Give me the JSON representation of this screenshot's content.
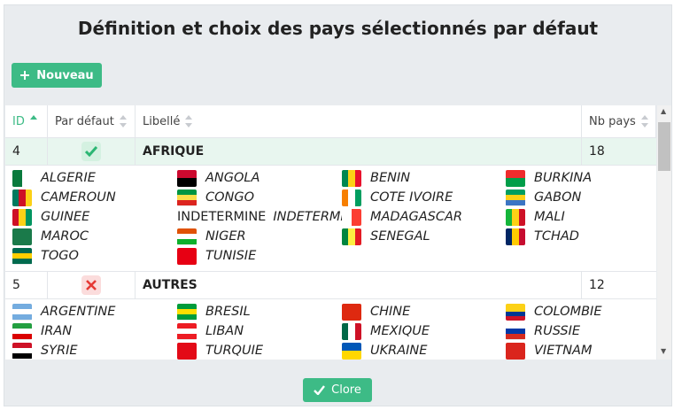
{
  "title": "Définition et choix des pays sélectionnés par défaut",
  "buttons": {
    "new": "Nouveau",
    "close": "Clore"
  },
  "table": {
    "headers": [
      "ID",
      "Par défaut",
      "Libellé",
      "Nb pays"
    ],
    "sorted_column": 0,
    "rows": [
      {
        "id": 4,
        "default": true,
        "label": "AFRIQUE",
        "count": 18,
        "selected": true,
        "countries": [
          {
            "name": "ALGERIE",
            "flag": [
              "#0a7a3d",
              "#ffffff"
            ],
            "stripes": "v"
          },
          {
            "name": "ANGOLA",
            "flag": [
              "#cc092f",
              "#000000"
            ],
            "stripes": "h"
          },
          {
            "name": "BENIN",
            "flag": [
              "#008751",
              "#fcd116",
              "#e8112d"
            ],
            "stripes": "v"
          },
          {
            "name": "BURKINA",
            "flag": [
              "#ef2b2d",
              "#009e49"
            ],
            "stripes": "h"
          },
          {
            "name": "CAMEROUN",
            "flag": [
              "#007a5e",
              "#ce1126",
              "#fcd116"
            ],
            "stripes": "v"
          },
          {
            "name": "CONGO",
            "flag": [
              "#009543",
              "#fbde4a",
              "#dc241f"
            ],
            "stripes": "h"
          },
          {
            "name": "COTE IVOIRE",
            "flag": [
              "#f77f00",
              "#ffffff",
              "#009e60"
            ],
            "stripes": "v"
          },
          {
            "name": "GABON",
            "flag": [
              "#009e60",
              "#fcd116",
              "#3a75c4"
            ],
            "stripes": "h"
          },
          {
            "name": "GUINEE",
            "flag": [
              "#ce1126",
              "#fcd116",
              "#009460"
            ],
            "stripes": "v"
          },
          {
            "name": "INDETERMINE",
            "flag_alt": "INDETERMINE"
          },
          {
            "name": "MADAGASCAR",
            "flag": [
              "#ffffff",
              "#fc3d32"
            ],
            "stripes": "v"
          },
          {
            "name": "MALI",
            "flag": [
              "#14b53a",
              "#fcd116",
              "#ce1126"
            ],
            "stripes": "v"
          },
          {
            "name": "MAROC",
            "flag": [
              "#1a7a4a",
              "#1a7a4a"
            ],
            "stripes": "v"
          },
          {
            "name": "NIGER",
            "flag": [
              "#e05206",
              "#ffffff",
              "#0db02b"
            ],
            "stripes": "h"
          },
          {
            "name": "SENEGAL",
            "flag": [
              "#00853f",
              "#fdef42",
              "#e31b23"
            ],
            "stripes": "v"
          },
          {
            "name": "TCHAD",
            "flag": [
              "#002664",
              "#fecb00",
              "#c60c30"
            ],
            "stripes": "v"
          },
          {
            "name": "TOGO",
            "flag": [
              "#006a4e",
              "#ffce00",
              "#006a4e"
            ],
            "stripes": "h"
          },
          {
            "name": "TUNISIE",
            "flag": [
              "#e70013",
              "#e70013"
            ],
            "stripes": "v"
          }
        ]
      },
      {
        "id": 5,
        "default": false,
        "label": "AUTRES",
        "count": 12,
        "selected": false,
        "countries": [
          {
            "name": "ARGENTINE",
            "flag": [
              "#74acdf",
              "#ffffff",
              "#74acdf"
            ],
            "stripes": "h"
          },
          {
            "name": "BRESIL",
            "flag": [
              "#009c3b",
              "#ffdf00",
              "#009c3b"
            ],
            "stripes": "h"
          },
          {
            "name": "CHINE",
            "flag": [
              "#de2910",
              "#de2910"
            ],
            "stripes": "v"
          },
          {
            "name": "COLOMBIE",
            "flag": [
              "#fcd116",
              "#fcd116",
              "#003893",
              "#ce1126"
            ],
            "stripes": "h"
          },
          {
            "name": "IRAN",
            "flag": [
              "#239f40",
              "#ffffff",
              "#da0000"
            ],
            "stripes": "h"
          },
          {
            "name": "LIBAN",
            "flag": [
              "#ed1c24",
              "#ffffff",
              "#ed1c24"
            ],
            "stripes": "h"
          },
          {
            "name": "MEXIQUE",
            "flag": [
              "#006847",
              "#ffffff",
              "#ce1126"
            ],
            "stripes": "v"
          },
          {
            "name": "RUSSIE",
            "flag": [
              "#ffffff",
              "#0039a6",
              "#d52b1e"
            ],
            "stripes": "h"
          },
          {
            "name": "SYRIE",
            "flag": [
              "#ce1126",
              "#ffffff",
              "#000000"
            ],
            "stripes": "h"
          },
          {
            "name": "TURQUIE",
            "flag": [
              "#e30a17",
              "#e30a17"
            ],
            "stripes": "v"
          },
          {
            "name": "UKRAINE",
            "flag": [
              "#0057b7",
              "#ffd700"
            ],
            "stripes": "h"
          },
          {
            "name": "VIETNAM",
            "flag": [
              "#da251d",
              "#da251d"
            ],
            "stripes": "v"
          }
        ]
      }
    ]
  }
}
